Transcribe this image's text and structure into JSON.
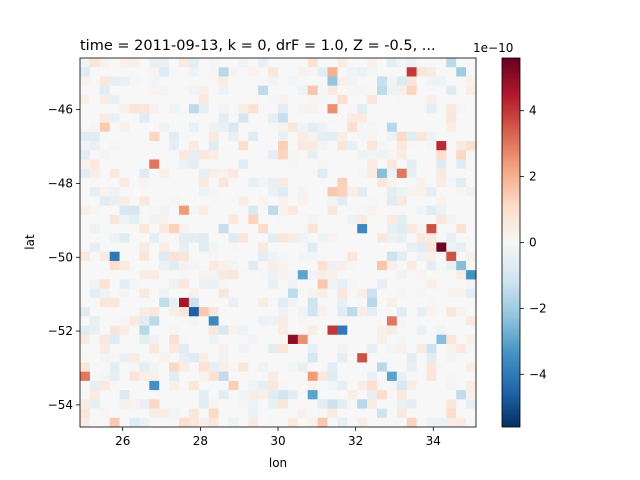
{
  "chart_data": {
    "type": "heatmap",
    "title": "time = 2011-09-13, k = 0, drF = 1.0, Z = -0.5, ...",
    "xlabel": "lon",
    "ylabel": "lat",
    "xlim": [
      24.9,
      35.1
    ],
    "ylim": [
      -54.6,
      -44.6
    ],
    "x_ticks": [
      26,
      28,
      30,
      32,
      34
    ],
    "x_tick_labels": [
      "26",
      "28",
      "30",
      "32",
      "34"
    ],
    "y_ticks": [
      -46,
      -48,
      -50,
      -52,
      -54
    ],
    "y_tick_labels": [
      "−46",
      "−48",
      "−50",
      "−52",
      "−54"
    ],
    "grid": false,
    "colorbar": {
      "colormap": "RdBu_r",
      "vmin": -5.6e-10,
      "vmax": 5.6e-10,
      "offset_label": "1e−10",
      "ticks": [
        4,
        2,
        0,
        -2,
        -4
      ],
      "tick_labels": [
        "4",
        "2",
        "0",
        "−2",
        "−4"
      ]
    },
    "grid_shape": {
      "cols": 40,
      "rows": 40
    },
    "cell_size_deg": {
      "lon": 0.25,
      "lat": 0.25
    },
    "notable_cells": [
      {
        "lon": 33.2,
        "lat": -44.9,
        "value": 4.0
      },
      {
        "lon": 34.6,
        "lat": -44.9,
        "value": -2.0
      },
      {
        "lon": 31.2,
        "lat": -44.9,
        "value": 2.0
      },
      {
        "lon": 31.2,
        "lat": -45.2,
        "value": -2.2
      },
      {
        "lon": 31.2,
        "lat": -46.0,
        "value": 2.6
      },
      {
        "lon": 34.0,
        "lat": -47.0,
        "value": 4.2
      },
      {
        "lon": 33.0,
        "lat": -47.6,
        "value": 3.0
      },
      {
        "lon": 32.5,
        "lat": -47.8,
        "value": -2.4
      },
      {
        "lon": 26.7,
        "lat": -47.4,
        "value": 3.0
      },
      {
        "lon": 27.5,
        "lat": -48.6,
        "value": 2.4
      },
      {
        "lon": 25.8,
        "lat": -50.0,
        "value": -4.0
      },
      {
        "lon": 33.7,
        "lat": -49.3,
        "value": 3.6
      },
      {
        "lon": 34.0,
        "lat": -49.7,
        "value": 5.5
      },
      {
        "lon": 34.3,
        "lat": -50.0,
        "value": 3.6
      },
      {
        "lon": 32.0,
        "lat": -49.3,
        "value": -3.6
      },
      {
        "lon": 34.8,
        "lat": -50.5,
        "value": -3.4
      },
      {
        "lon": 34.6,
        "lat": -50.3,
        "value": -2.4
      },
      {
        "lon": 30.5,
        "lat": -50.5,
        "value": -3.0
      },
      {
        "lon": 27.5,
        "lat": -51.1,
        "value": 4.6
      },
      {
        "lon": 27.7,
        "lat": -51.5,
        "value": -4.6
      },
      {
        "lon": 28.2,
        "lat": -51.7,
        "value": -3.6
      },
      {
        "lon": 32.7,
        "lat": -51.7,
        "value": 3.0
      },
      {
        "lon": 31.2,
        "lat": -52.0,
        "value": 4.0
      },
      {
        "lon": 31.5,
        "lat": -52.0,
        "value": -4.0
      },
      {
        "lon": 30.2,
        "lat": -52.3,
        "value": 5.0
      },
      {
        "lon": 32.0,
        "lat": -52.7,
        "value": 3.6
      },
      {
        "lon": 30.5,
        "lat": -52.3,
        "value": 2.6
      },
      {
        "lon": 34.0,
        "lat": -52.3,
        "value": -2.4
      },
      {
        "lon": 25.0,
        "lat": -53.2,
        "value": 3.0
      },
      {
        "lon": 26.7,
        "lat": -53.5,
        "value": -3.4
      },
      {
        "lon": 30.7,
        "lat": -53.8,
        "value": -3.0
      },
      {
        "lon": 30.7,
        "lat": -53.2,
        "value": 2.4
      },
      {
        "lon": 32.7,
        "lat": -53.2,
        "value": -3.0
      }
    ]
  }
}
